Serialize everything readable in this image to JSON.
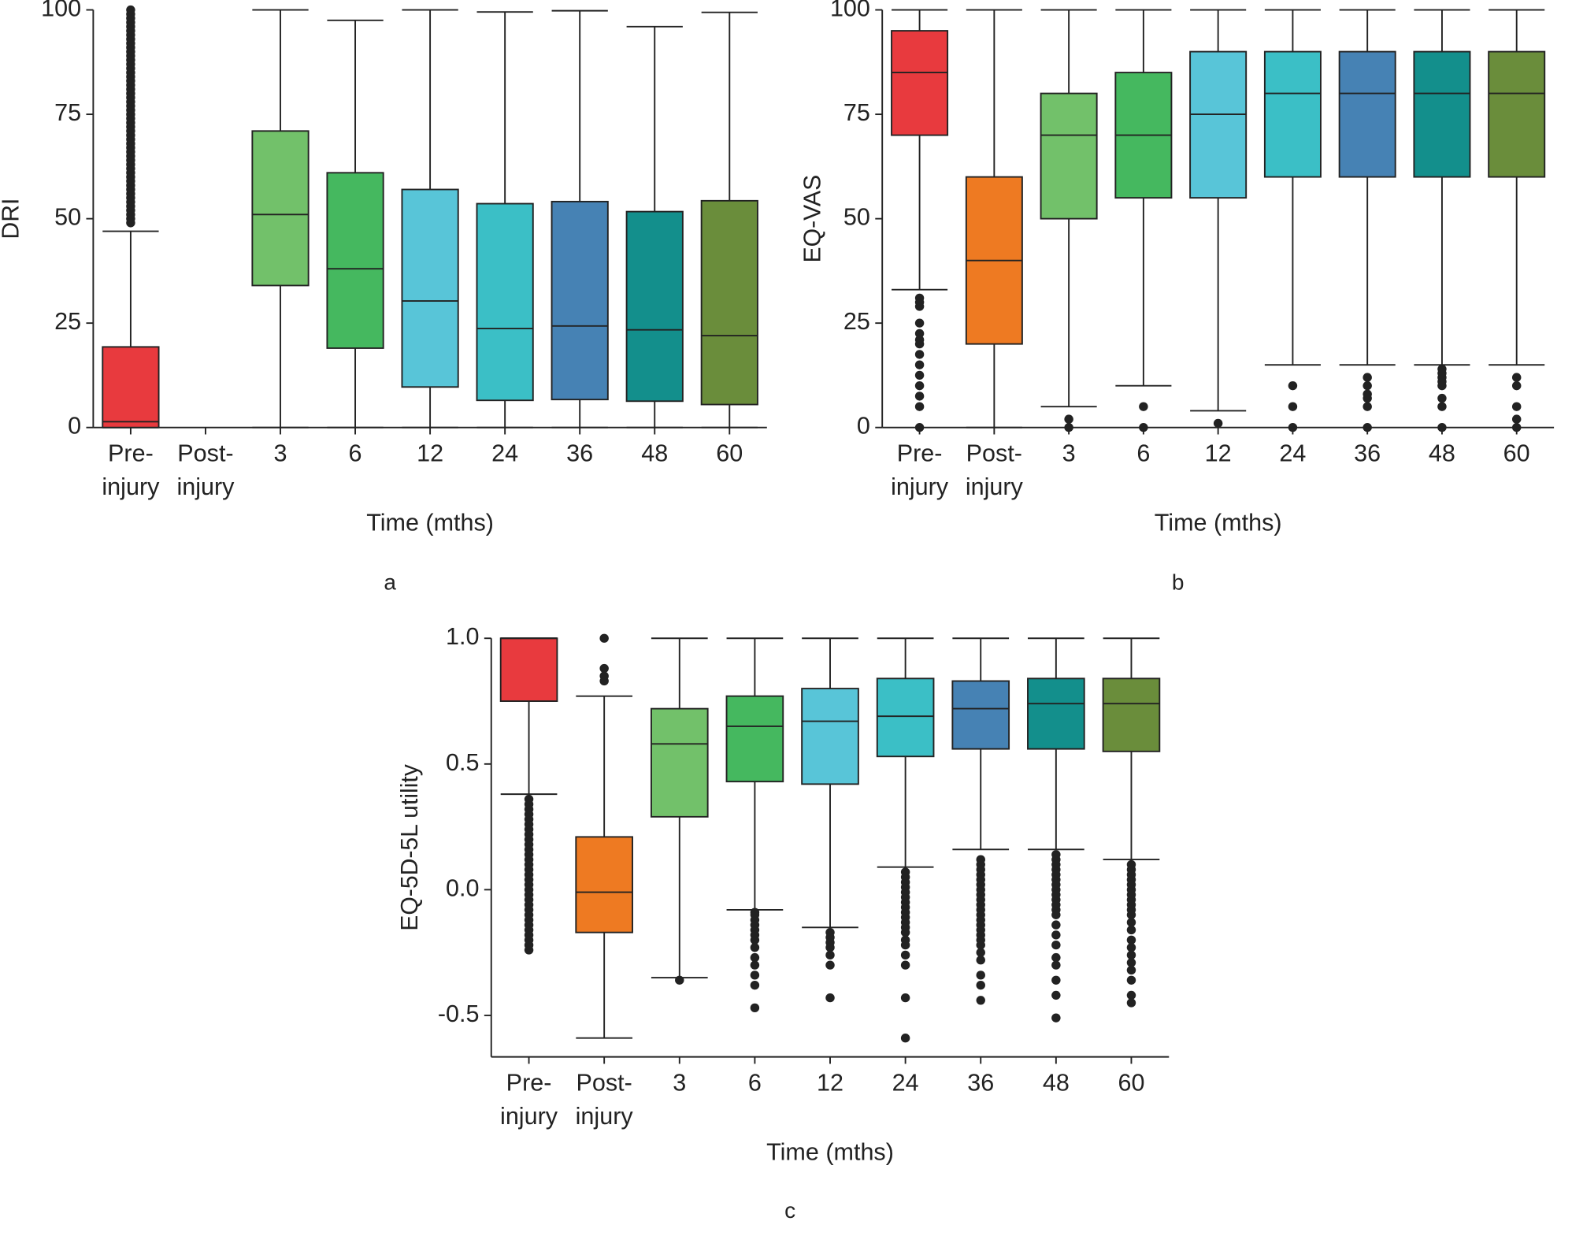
{
  "chart_data": [
    {
      "type": "box",
      "panel_label": "a",
      "ylabel": "DRI",
      "xlabel": "Time (mths)",
      "categories": [
        "Pre-\ninjury",
        "Post-\ninjury",
        "3",
        "6",
        "12",
        "24",
        "36",
        "48",
        "60"
      ],
      "colors": [
        "#e83a3e",
        "#ee7a22",
        "#72c16a",
        "#45b85f",
        "#58c5d8",
        "#3bbfc6",
        "#4682b4",
        "#138f8c",
        "#6a8d3b"
      ],
      "ylim": [
        0,
        100
      ],
      "yticks": [
        0,
        25,
        50,
        75,
        100
      ],
      "boxes": [
        {
          "low": 0,
          "q1": 0,
          "median": 1.4,
          "q3": 19.3,
          "high": 47,
          "outliers": [
            49,
            50,
            51,
            52,
            53,
            54,
            55,
            56,
            57,
            58,
            59,
            60,
            61,
            62,
            63,
            64,
            65,
            66,
            67,
            68,
            69,
            70,
            71,
            72,
            73,
            74,
            75,
            76,
            77,
            78,
            79,
            80,
            81,
            82,
            83,
            84,
            85,
            86,
            87,
            88,
            89,
            90,
            91,
            92,
            93,
            94,
            95,
            96,
            97,
            98,
            99,
            100
          ]
        },
        null,
        {
          "low": 0,
          "q1": 34,
          "median": 51,
          "q3": 71,
          "high": 100,
          "outliers": []
        },
        {
          "low": 0,
          "q1": 19,
          "median": 38,
          "q3": 61,
          "high": 97.5,
          "outliers": []
        },
        {
          "low": 0,
          "q1": 9.7,
          "median": 30.3,
          "q3": 57,
          "high": 100,
          "outliers": []
        },
        {
          "low": 0,
          "q1": 6.5,
          "median": 23.7,
          "q3": 53.6,
          "high": 99.5,
          "outliers": []
        },
        {
          "low": 0,
          "q1": 6.7,
          "median": 24.3,
          "q3": 54.1,
          "high": 99.8,
          "outliers": []
        },
        {
          "low": 0,
          "q1": 6.3,
          "median": 23.4,
          "q3": 51.7,
          "high": 96,
          "outliers": []
        },
        {
          "low": 0,
          "q1": 5.5,
          "median": 22,
          "q3": 54.3,
          "high": 99.4,
          "outliers": []
        }
      ]
    },
    {
      "type": "box",
      "panel_label": "b",
      "ylabel": "EQ-VAS",
      "xlabel": "Time (mths)",
      "categories": [
        "Pre-\ninjury",
        "Post-\ninjury",
        "3",
        "6",
        "12",
        "24",
        "36",
        "48",
        "60"
      ],
      "colors": [
        "#e83a3e",
        "#ee7a22",
        "#72c16a",
        "#45b85f",
        "#58c5d8",
        "#3bbfc6",
        "#4682b4",
        "#138f8c",
        "#6a8d3b"
      ],
      "ylim": [
        0,
        100
      ],
      "yticks": [
        0,
        25,
        50,
        75,
        100
      ],
      "boxes": [
        {
          "low": 33,
          "q1": 70,
          "median": 85,
          "q3": 95,
          "high": 100,
          "outliers": [
            0,
            5,
            7.5,
            10,
            12.5,
            15,
            17.5,
            20,
            21,
            22.5,
            25,
            29,
            30,
            31
          ]
        },
        {
          "low": 0,
          "q1": 20,
          "median": 40,
          "q3": 60,
          "high": 100,
          "outliers": []
        },
        {
          "low": 5,
          "q1": 50,
          "median": 70,
          "q3": 80,
          "high": 100,
          "outliers": [
            0,
            2
          ]
        },
        {
          "low": 10,
          "q1": 55,
          "median": 70,
          "q3": 85,
          "high": 100,
          "outliers": [
            0,
            5
          ]
        },
        {
          "low": 4,
          "q1": 55,
          "median": 75,
          "q3": 90,
          "high": 100,
          "outliers": [
            1
          ]
        },
        {
          "low": 15,
          "q1": 60,
          "median": 80,
          "q3": 90,
          "high": 100,
          "outliers": [
            0,
            5,
            10
          ]
        },
        {
          "low": 15,
          "q1": 60,
          "median": 80,
          "q3": 90,
          "high": 100,
          "outliers": [
            0,
            5,
            7,
            8,
            10,
            12
          ]
        },
        {
          "low": 15,
          "q1": 60,
          "median": 80,
          "q3": 90,
          "high": 100,
          "outliers": [
            0,
            5,
            7,
            10,
            11,
            12,
            13,
            14
          ]
        },
        {
          "low": 15,
          "q1": 60,
          "median": 80,
          "q3": 90,
          "high": 100,
          "outliers": [
            0,
            2,
            5,
            10,
            12
          ]
        }
      ]
    },
    {
      "type": "box",
      "panel_label": "c",
      "ylabel": "EQ-5D-5L utility",
      "xlabel": "Time (mths)",
      "categories": [
        "Pre-\ninjury",
        "Post-\ninjury",
        "3",
        "6",
        "12",
        "24",
        "36",
        "48",
        "60"
      ],
      "colors": [
        "#e83a3e",
        "#ee7a22",
        "#72c16a",
        "#45b85f",
        "#58c5d8",
        "#3bbfc6",
        "#4682b4",
        "#138f8c",
        "#6a8d3b"
      ],
      "ylim": [
        -0.665,
        1.0
      ],
      "yticks": [
        {
          "value": -0.5,
          "label": "-0.5"
        },
        {
          "value": 0,
          "label": "0.0"
        },
        {
          "value": 0.5,
          "label": "0.5"
        },
        {
          "value": 1,
          "label": "1.0"
        }
      ],
      "boxes": [
        {
          "low": 0.38,
          "q1": 0.75,
          "median": 1.0,
          "q3": 1.0,
          "high": 1.0,
          "outliers": [
            -0.24,
            -0.22,
            -0.2,
            -0.18,
            -0.16,
            -0.14,
            -0.12,
            -0.1,
            -0.08,
            -0.06,
            -0.04,
            -0.02,
            0,
            0.02,
            0.04,
            0.06,
            0.08,
            0.1,
            0.12,
            0.14,
            0.16,
            0.18,
            0.2,
            0.22,
            0.24,
            0.26,
            0.28,
            0.3,
            0.32,
            0.34,
            0.36
          ]
        },
        {
          "low": -0.59,
          "q1": -0.17,
          "median": -0.01,
          "q3": 0.21,
          "high": 0.77,
          "outliers": [
            0.83,
            0.85,
            0.88,
            1.0
          ]
        },
        {
          "low": -0.35,
          "q1": 0.29,
          "median": 0.58,
          "q3": 0.72,
          "high": 1.0,
          "outliers": [
            -0.36
          ]
        },
        {
          "low": -0.08,
          "q1": 0.43,
          "median": 0.65,
          "q3": 0.77,
          "high": 1.0,
          "outliers": [
            -0.09,
            -0.1,
            -0.12,
            -0.14,
            -0.16,
            -0.18,
            -0.2,
            -0.23,
            -0.27,
            -0.3,
            -0.34,
            -0.38,
            -0.47
          ]
        },
        {
          "low": -0.15,
          "q1": 0.42,
          "median": 0.67,
          "q3": 0.8,
          "high": 1.0,
          "outliers": [
            -0.17,
            -0.19,
            -0.21,
            -0.23,
            -0.26,
            -0.3,
            -0.43
          ]
        },
        {
          "low": 0.09,
          "q1": 0.53,
          "median": 0.69,
          "q3": 0.84,
          "high": 1.0,
          "outliers": [
            0.07,
            0.05,
            0.03,
            0.01,
            -0.01,
            -0.03,
            -0.05,
            -0.07,
            -0.09,
            -0.11,
            -0.13,
            -0.15,
            -0.17,
            -0.2,
            -0.22,
            -0.26,
            -0.3,
            -0.43,
            -0.59
          ]
        },
        {
          "low": 0.16,
          "q1": 0.56,
          "median": 0.72,
          "q3": 0.83,
          "high": 1.0,
          "outliers": [
            0.12,
            0.1,
            0.08,
            0.06,
            0.04,
            0.02,
            0,
            -0.02,
            -0.04,
            -0.06,
            -0.08,
            -0.1,
            -0.12,
            -0.14,
            -0.16,
            -0.18,
            -0.2,
            -0.22,
            -0.25,
            -0.28,
            -0.34,
            -0.38,
            -0.44
          ]
        },
        {
          "low": 0.16,
          "q1": 0.56,
          "median": 0.74,
          "q3": 0.84,
          "high": 1.0,
          "outliers": [
            0.14,
            0.12,
            0.1,
            0.08,
            0.06,
            0.04,
            0.02,
            0,
            -0.02,
            -0.04,
            -0.06,
            -0.08,
            -0.1,
            -0.14,
            -0.18,
            -0.22,
            -0.27,
            -0.3,
            -0.36,
            -0.42,
            -0.51
          ]
        },
        {
          "low": 0.12,
          "q1": 0.55,
          "median": 0.74,
          "q3": 0.84,
          "high": 1.0,
          "outliers": [
            0.1,
            0.08,
            0.06,
            0.04,
            0.02,
            0,
            -0.02,
            -0.04,
            -0.06,
            -0.08,
            -0.1,
            -0.13,
            -0.16,
            -0.2,
            -0.23,
            -0.26,
            -0.29,
            -0.32,
            -0.36,
            -0.42,
            -0.45
          ]
        }
      ]
    }
  ]
}
